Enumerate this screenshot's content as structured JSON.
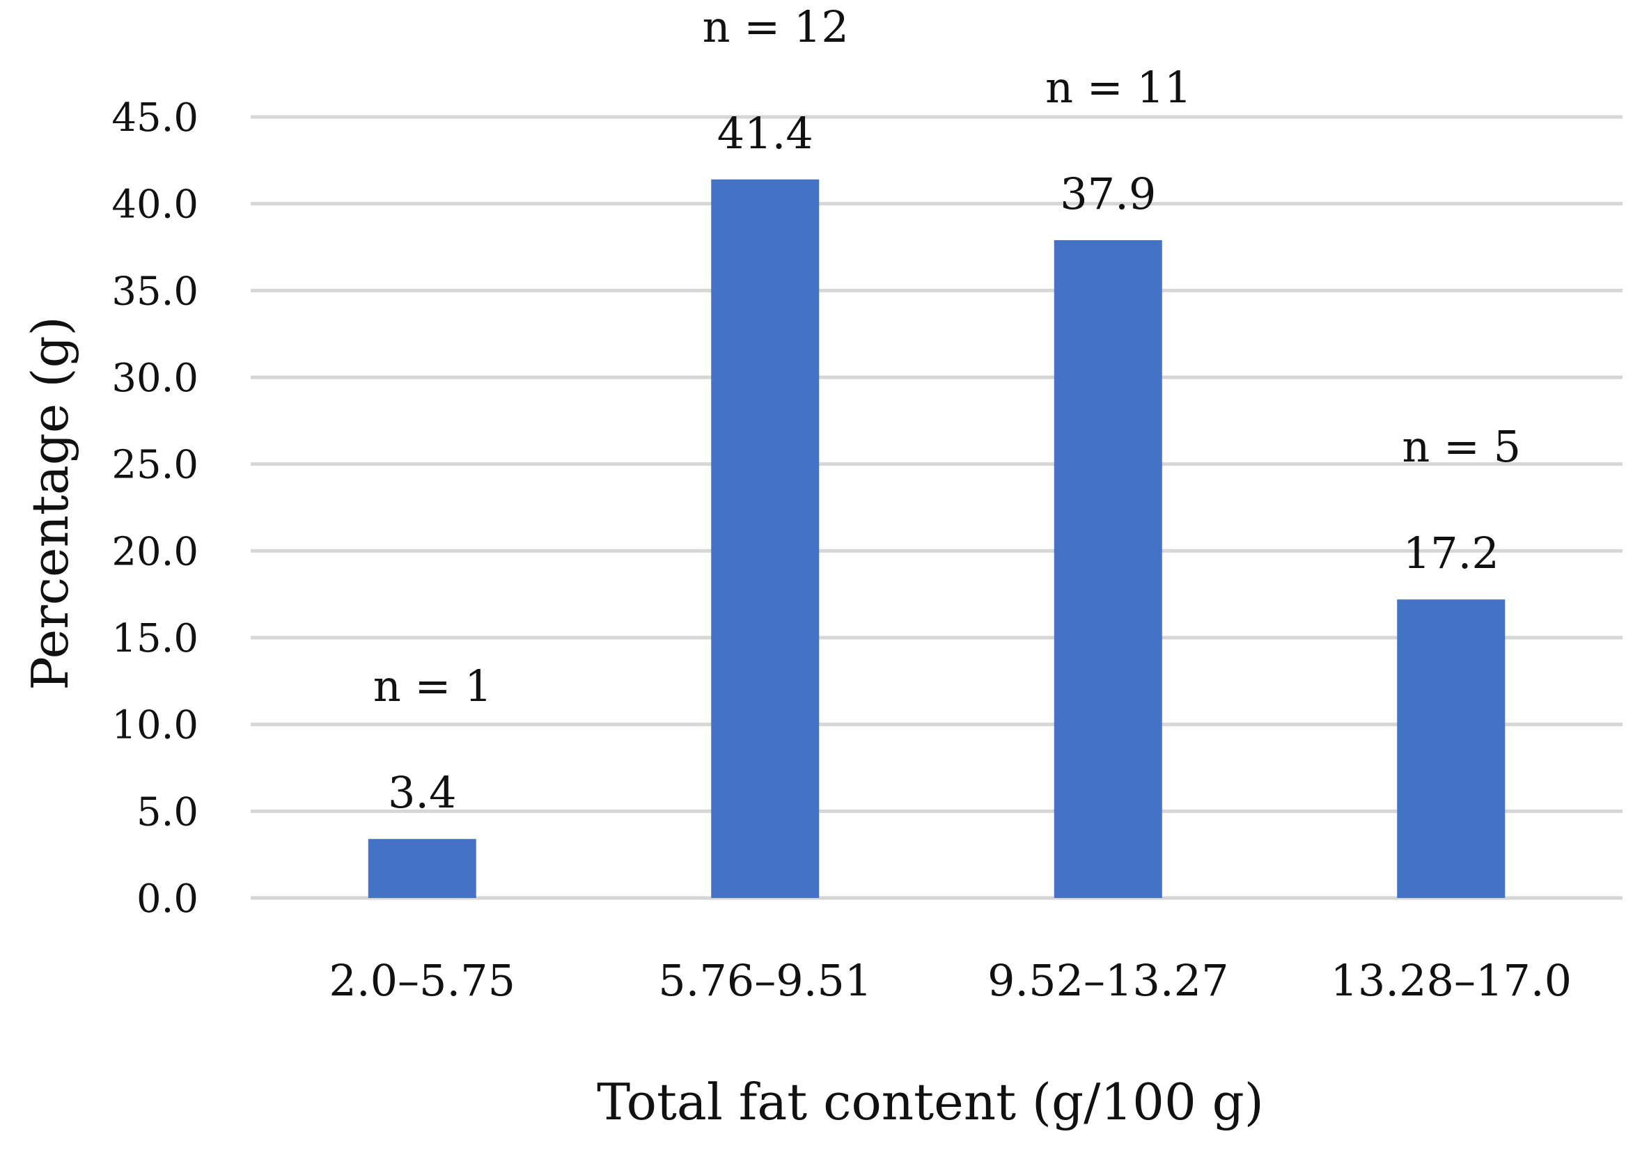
{
  "chart_data": {
    "type": "bar",
    "title": "",
    "xlabel": "Total fat content (g/100 g)",
    "ylabel": "Percentage (g)",
    "ylim": [
      0,
      45
    ],
    "yticks": [
      "0.0",
      "5.0",
      "10.0",
      "15.0",
      "20.0",
      "25.0",
      "30.0",
      "35.0",
      "40.0",
      "45.0"
    ],
    "grid": true,
    "legend": "none",
    "bar_color": "#4472C4",
    "categories": [
      "2.0–5.75",
      "5.76–9.51",
      "9.52–13.27",
      "13.28–17.0"
    ],
    "values": [
      3.4,
      41.4,
      37.9,
      17.2
    ],
    "data_labels": [
      "3.4",
      "41.4",
      "37.9",
      "17.2"
    ],
    "annotations": [
      "n = 1",
      "n = 12",
      "n = 11",
      "n = 5"
    ]
  }
}
